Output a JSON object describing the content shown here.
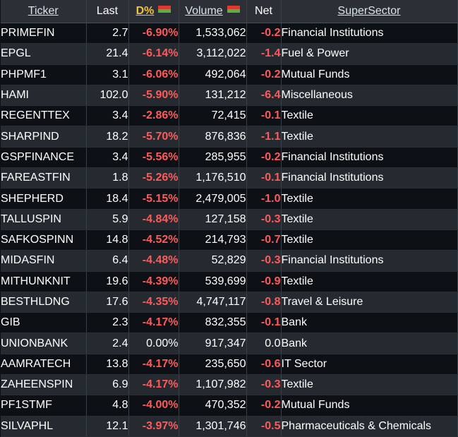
{
  "headers": {
    "ticker": "Ticker",
    "last": "Last",
    "dpct": "D%",
    "volume": "Volume",
    "net": "Net",
    "supersector": "SuperSector"
  },
  "colors": {
    "negative": "#ff5a5a",
    "active_sort": "#f2c230"
  },
  "rows": [
    {
      "ticker": "PRIMEFIN",
      "last": "2.7",
      "dpct": "-6.90%",
      "volume": "1,533,062",
      "net": "-0.2",
      "sector": "Financial Institutions"
    },
    {
      "ticker": "EPGL",
      "last": "21.4",
      "dpct": "-6.14%",
      "volume": "3,112,022",
      "net": "-1.4",
      "sector": "Fuel & Power"
    },
    {
      "ticker": "PHPMF1",
      "last": "3.1",
      "dpct": "-6.06%",
      "volume": "492,064",
      "net": "-0.2",
      "sector": "Mutual Funds"
    },
    {
      "ticker": "HAMI",
      "last": "102.0",
      "dpct": "-5.90%",
      "volume": "131,212",
      "net": "-6.4",
      "sector": "Miscellaneous"
    },
    {
      "ticker": "REGENTTEX",
      "last": "3.4",
      "dpct": "-2.86%",
      "volume": "72,415",
      "net": "-0.1",
      "sector": "Textile"
    },
    {
      "ticker": "SHARPIND",
      "last": "18.2",
      "dpct": "-5.70%",
      "volume": "876,836",
      "net": "-1.1",
      "sector": "Textile"
    },
    {
      "ticker": "GSPFINANCE",
      "last": "3.4",
      "dpct": "-5.56%",
      "volume": "285,955",
      "net": "-0.2",
      "sector": "Financial Institutions"
    },
    {
      "ticker": "FAREASTFIN",
      "last": "1.8",
      "dpct": "-5.26%",
      "volume": "1,176,510",
      "net": "-0.1",
      "sector": "Financial Institutions"
    },
    {
      "ticker": "SHEPHERD",
      "last": "18.4",
      "dpct": "-5.15%",
      "volume": "2,479,005",
      "net": "-1.0",
      "sector": "Textile"
    },
    {
      "ticker": "TALLUSPIN",
      "last": "5.9",
      "dpct": "-4.84%",
      "volume": "127,158",
      "net": "-0.3",
      "sector": "Textile"
    },
    {
      "ticker": "SAFKOSPINN",
      "last": "14.8",
      "dpct": "-4.52%",
      "volume": "214,793",
      "net": "-0.7",
      "sector": "Textile"
    },
    {
      "ticker": "MIDASFIN",
      "last": "6.4",
      "dpct": "-4.48%",
      "volume": "52,829",
      "net": "-0.3",
      "sector": "Financial Institutions"
    },
    {
      "ticker": "MITHUNKNIT",
      "last": "19.6",
      "dpct": "-4.39%",
      "volume": "539,699",
      "net": "-0.9",
      "sector": "Textile"
    },
    {
      "ticker": "BESTHLDNG",
      "last": "17.6",
      "dpct": "-4.35%",
      "volume": "4,747,117",
      "net": "-0.8",
      "sector": "Travel & Leisure"
    },
    {
      "ticker": "GIB",
      "last": "2.3",
      "dpct": "-4.17%",
      "volume": "832,355",
      "net": "-0.1",
      "sector": "Bank"
    },
    {
      "ticker": "UNIONBANK",
      "last": "2.4",
      "dpct": "0.00%",
      "volume": "917,347",
      "net": "0.0",
      "sector": "Bank"
    },
    {
      "ticker": "AAMRATECH",
      "last": "13.8",
      "dpct": "-4.17%",
      "volume": "235,650",
      "net": "-0.6",
      "sector": "IT Sector"
    },
    {
      "ticker": "ZAHEENSPIN",
      "last": "6.9",
      "dpct": "-4.17%",
      "volume": "1,107,982",
      "net": "-0.3",
      "sector": "Textile"
    },
    {
      "ticker": "PF1STMF",
      "last": "4.8",
      "dpct": "-4.00%",
      "volume": "470,352",
      "net": "-0.2",
      "sector": "Mutual Funds"
    },
    {
      "ticker": "SILVAPHL",
      "last": "12.1",
      "dpct": "-3.97%",
      "volume": "1,301,746",
      "net": "-0.5",
      "sector": "Pharmaceuticals & Chemicals"
    }
  ]
}
